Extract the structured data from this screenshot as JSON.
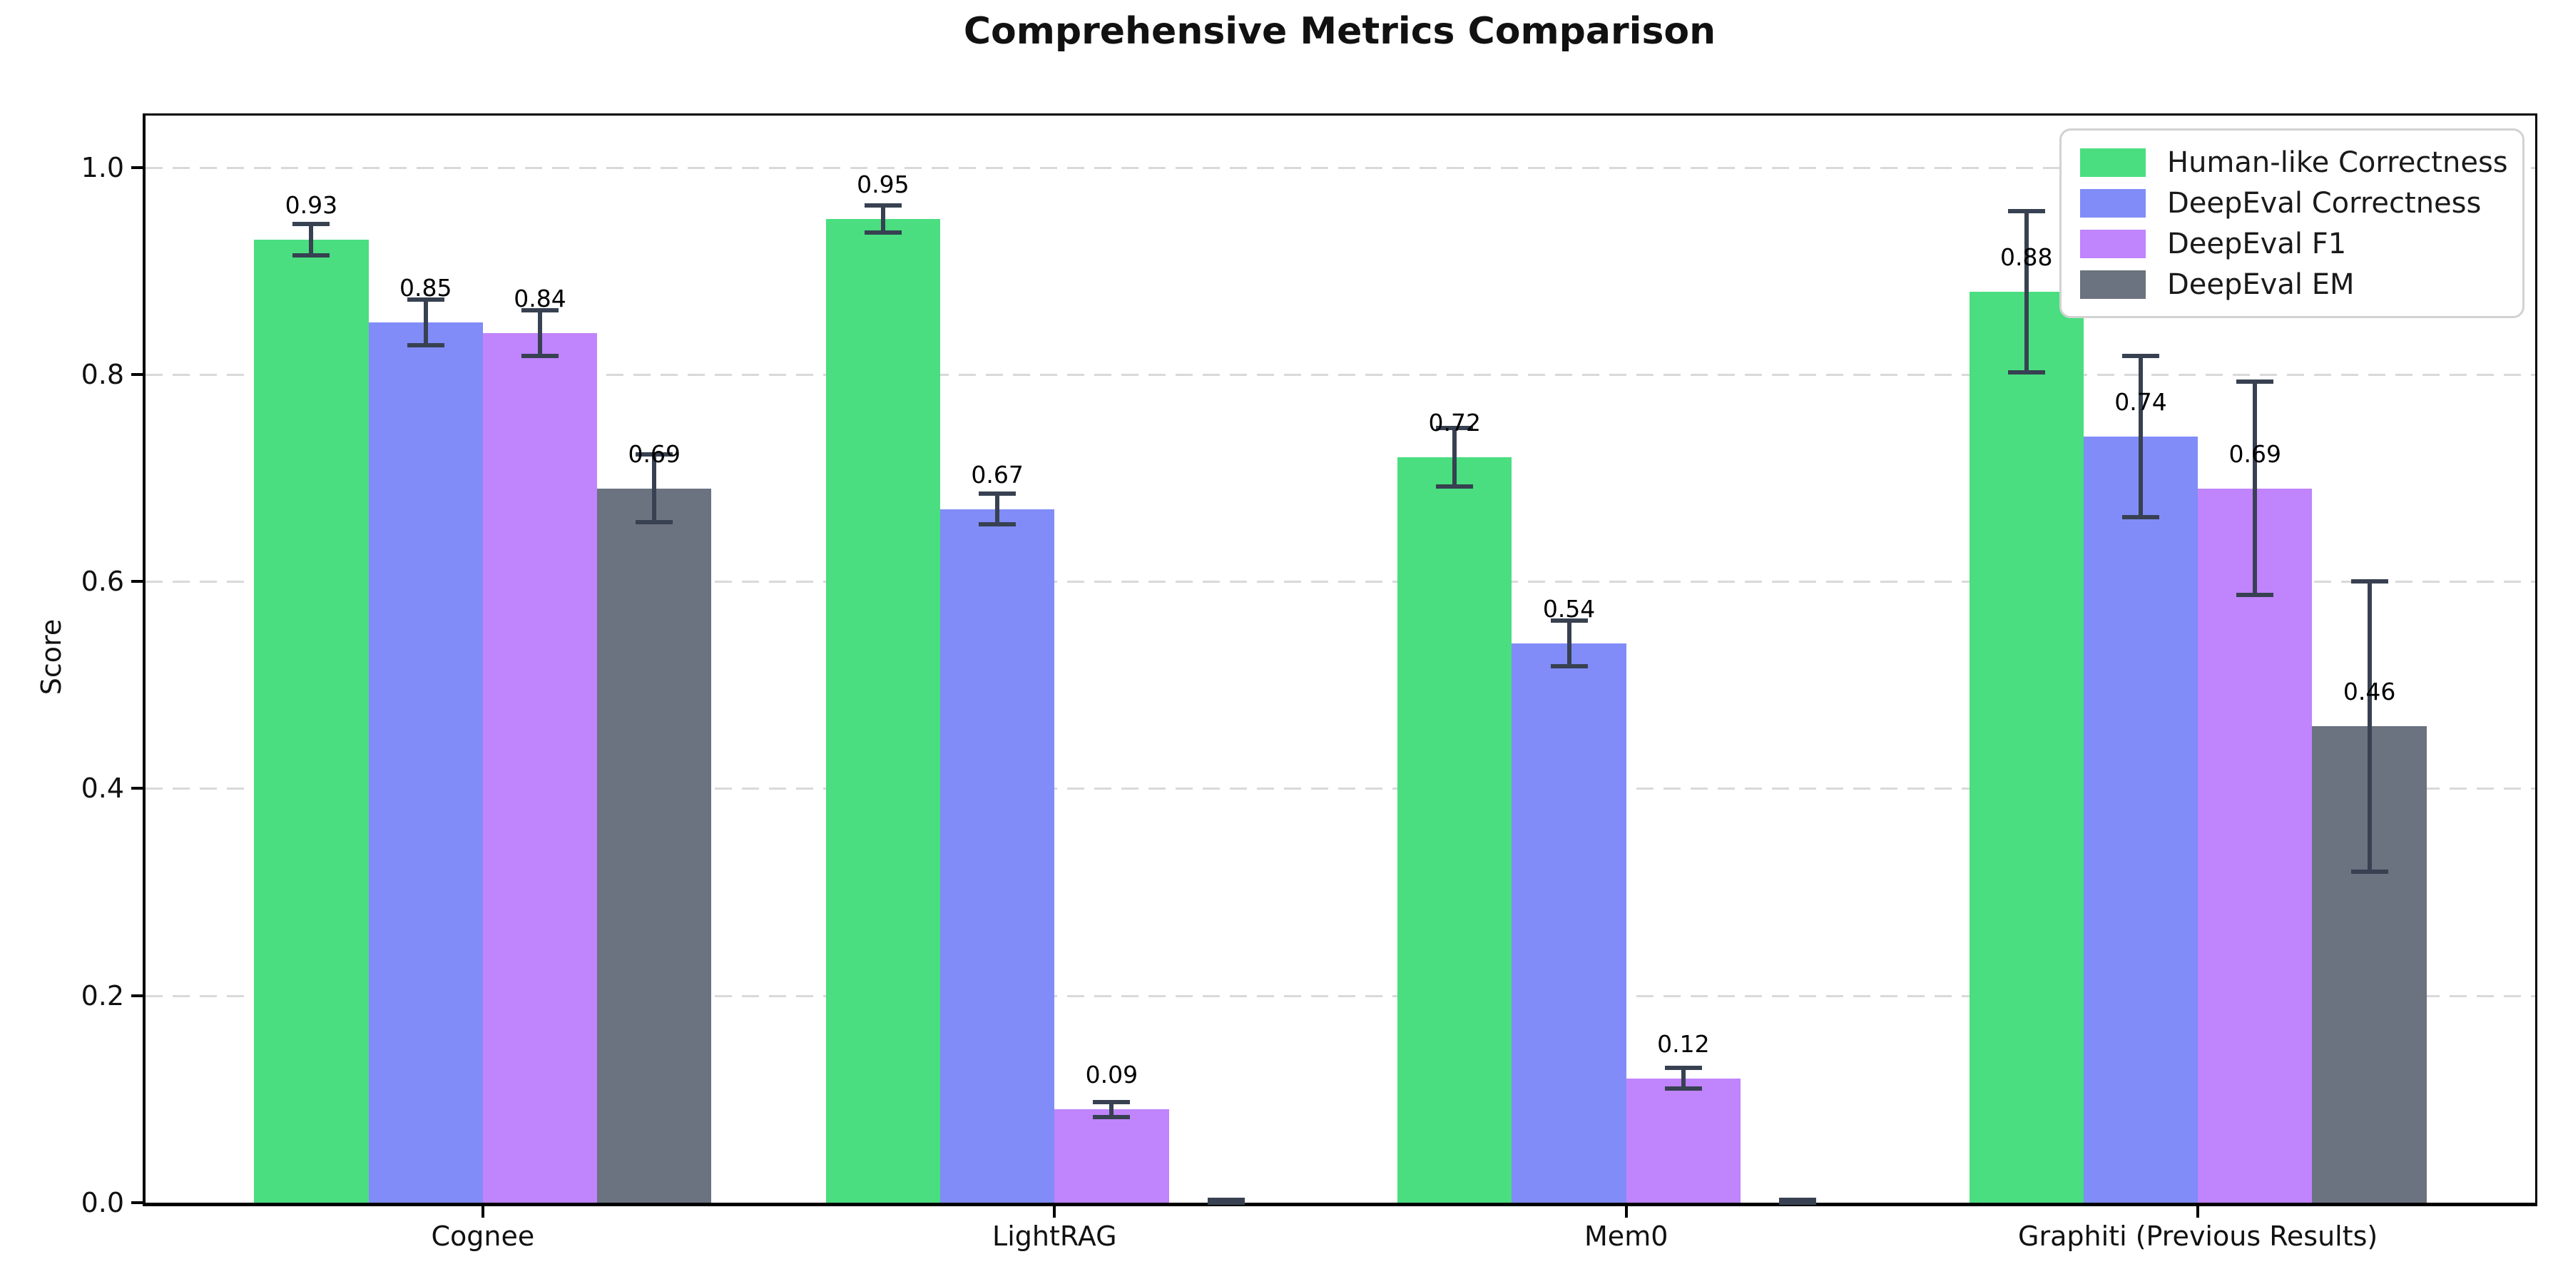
{
  "chart_data": {
    "type": "bar",
    "title": "Comprehensive Metrics Comparison",
    "ylabel": "Score",
    "categories": [
      "Cognee",
      "LightRAG",
      "Mem0",
      "Graphiti (Previous Results)"
    ],
    "series": [
      {
        "name": "Human-like Correctness",
        "color": "#4ade80",
        "values": [
          0.93,
          0.95,
          0.72,
          0.88
        ],
        "errors": [
          0.015,
          0.013,
          0.028,
          0.078
        ],
        "labels": [
          "0.93",
          "0.95",
          "0.72",
          "0.88"
        ]
      },
      {
        "name": "DeepEval Correctness",
        "color": "#818cf8",
        "values": [
          0.85,
          0.67,
          0.54,
          0.74
        ],
        "errors": [
          0.022,
          0.015,
          0.022,
          0.078
        ],
        "labels": [
          "0.85",
          "0.67",
          "0.54",
          "0.74"
        ]
      },
      {
        "name": "DeepEval F1",
        "color": "#c084fc",
        "values": [
          0.84,
          0.09,
          0.12,
          0.69
        ],
        "errors": [
          0.022,
          0.007,
          0.01,
          0.103
        ],
        "labels": [
          "0.84",
          "0.09",
          "0.12",
          "0.69"
        ]
      },
      {
        "name": "DeepEval EM",
        "color": "#6b7280",
        "values": [
          0.69,
          0.0,
          0.0,
          0.46
        ],
        "errors": [
          0.033,
          0.003,
          0.003,
          0.14
        ],
        "labels": [
          "0.69",
          "",
          "",
          "0.46"
        ]
      }
    ],
    "y_ticks": [
      "0.0",
      "0.2",
      "0.4",
      "0.6",
      "0.8",
      "1.0"
    ],
    "ylim": [
      0,
      1.05
    ],
    "grid": "horizontal-dashed",
    "grid_color": "#d9d9d9",
    "legend_position": "upper right",
    "errorbar_color": "#374151",
    "background_color": "#ffffff"
  }
}
